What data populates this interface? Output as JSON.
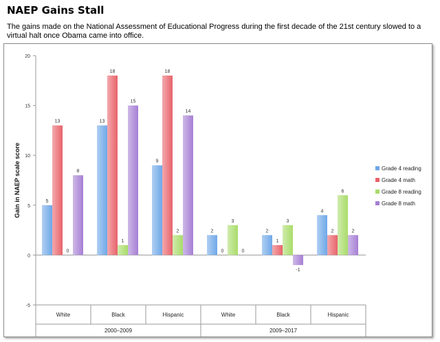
{
  "header": {
    "title": "NAEP Gains Stall",
    "subtitle": "The gains made on the National Assessment of Educational Progress during the first decade of the 21st century slowed to a virtual halt once Obama came into office."
  },
  "chart_data": {
    "type": "bar",
    "ylabel": "Gain in NAEP scale score",
    "ylim": [
      -5,
      20
    ],
    "yticks": [
      "-5",
      "0",
      "5",
      "10",
      "15",
      "20"
    ],
    "grid": false,
    "legend_position": "right",
    "categories": [
      "White",
      "Black",
      "Hispanic",
      "White",
      "Black",
      "Hispanic"
    ],
    "groups": [
      {
        "label": "2000–2009",
        "span": [
          0,
          2
        ]
      },
      {
        "label": "2009–2017",
        "span": [
          3,
          5
        ]
      }
    ],
    "series": [
      {
        "name": "Grade 4 reading",
        "color": "#6fa8e8",
        "values": [
          5,
          13,
          9,
          2,
          2,
          4
        ]
      },
      {
        "name": "Grade 4 math",
        "color": "#e8636a",
        "values": [
          13,
          18,
          18,
          0,
          1,
          2
        ]
      },
      {
        "name": "Grade 8 reading",
        "color": "#a9dc6a",
        "values": [
          0,
          1,
          2,
          3,
          3,
          6
        ]
      },
      {
        "name": "Grade 8 math",
        "color": "#a67fd4",
        "values": [
          8,
          15,
          14,
          0,
          -1,
          2
        ]
      }
    ],
    "data_labels": [
      [
        "5",
        "13",
        "9",
        "2",
        "2",
        "4"
      ],
      [
        "13",
        "18",
        "18",
        "0",
        "1",
        "2"
      ],
      [
        "0",
        "1",
        "2",
        "3",
        "3",
        "6"
      ],
      [
        "8",
        "15",
        "14",
        "0",
        "-1",
        "2"
      ]
    ]
  }
}
